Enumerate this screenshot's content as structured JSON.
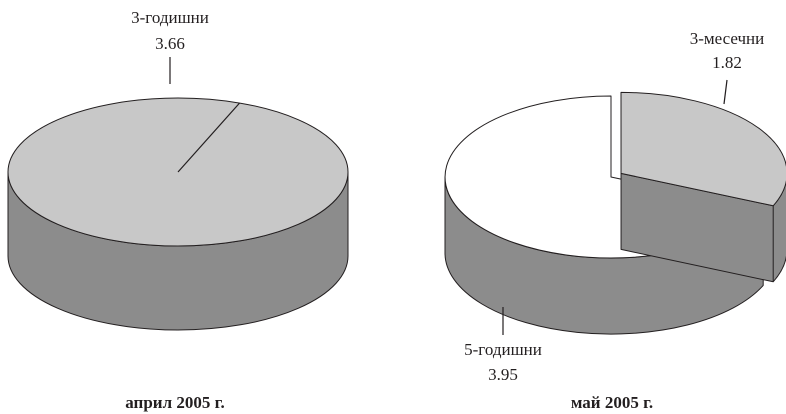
{
  "chart_data": [
    {
      "type": "pie",
      "style": "3d",
      "title": "април 2005 г.",
      "slices": [
        {
          "label": "3-годишни",
          "value": 3.66,
          "value_label": "3.66",
          "color": "#c8c8c8"
        },
        {
          "label": "",
          "value": 0.07,
          "color": "#c8c8c8"
        }
      ]
    },
    {
      "type": "pie",
      "style": "3d",
      "title": "май 2005 г.",
      "slices": [
        {
          "label": "3-месечни",
          "value": 1.82,
          "value_label": "1.82",
          "color": "#c8c8c8",
          "exploded": true
        },
        {
          "label": "5-годишни",
          "value": 3.95,
          "value_label": "3.95",
          "color": "#ffffff"
        }
      ]
    }
  ],
  "colors": {
    "outline": "#231f20",
    "side": "#8c8c8c"
  }
}
